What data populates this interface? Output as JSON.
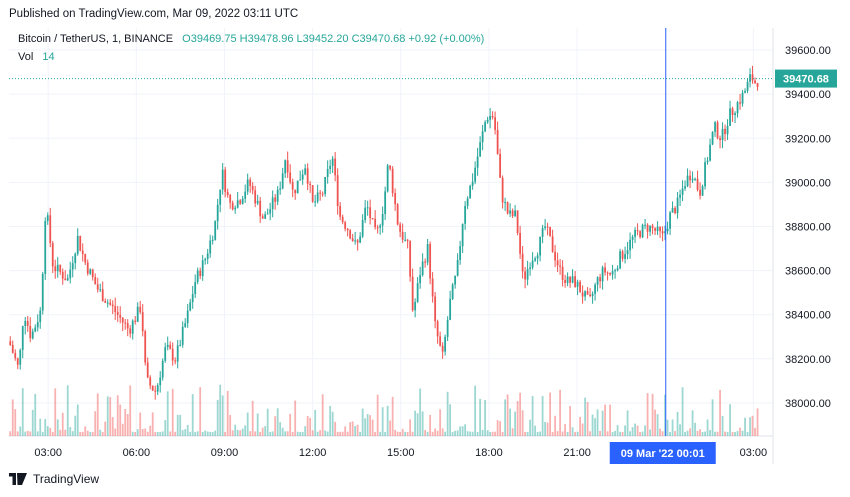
{
  "published": "Published on TradingView.com, Mar 09, 2022 03:11 UTC",
  "legend": {
    "symbol": "Bitcoin / TetherUS, 1, BINANCE",
    "ohlc_text": "O39469.75  H39478.96  L39452.20  C39470.68  +0.92 (+0.00%)"
  },
  "volume": {
    "label": "Vol",
    "value": "14"
  },
  "footer": {
    "brand": "TradingView"
  },
  "colors": {
    "up": "#26a69a",
    "down": "#ef5350",
    "crosshair": "#2962ff",
    "grid": "#f0f3fa"
  },
  "chart_data": {
    "type": "candlestick",
    "title": "Bitcoin / TetherUS, 1, BINANCE",
    "ylim": [
      37850,
      39700
    ],
    "y_ticks": [
      "38000.00",
      "38200.00",
      "38400.00",
      "38600.00",
      "38800.00",
      "39000.00",
      "39200.00",
      "39400.00",
      "39600.00"
    ],
    "x_ticks": [
      "03:00",
      "06:00",
      "09:00",
      "12:00",
      "15:00",
      "18:00",
      "21:00",
      "03:00"
    ],
    "last_price": "39470.68",
    "crosshair_label": "09 Mar '22   00:01",
    "close_series": [
      {
        "t": "01:40",
        "v": 38280
      },
      {
        "t": "02:00",
        "v": 38150
      },
      {
        "t": "02:10",
        "v": 38420
      },
      {
        "t": "02:25",
        "v": 38300
      },
      {
        "t": "02:45",
        "v": 38420
      },
      {
        "t": "02:55",
        "v": 38900
      },
      {
        "t": "03:10",
        "v": 38620
      },
      {
        "t": "03:40",
        "v": 38560
      },
      {
        "t": "04:00",
        "v": 38750
      },
      {
        "t": "04:15",
        "v": 38640
      },
      {
        "t": "04:40",
        "v": 38520
      },
      {
        "t": "05:15",
        "v": 38420
      },
      {
        "t": "05:45",
        "v": 38330
      },
      {
        "t": "06:10",
        "v": 38440
      },
      {
        "t": "06:20",
        "v": 38100
      },
      {
        "t": "06:40",
        "v": 38050
      },
      {
        "t": "07:00",
        "v": 38250
      },
      {
        "t": "07:20",
        "v": 38200
      },
      {
        "t": "07:45",
        "v": 38400
      },
      {
        "t": "08:00",
        "v": 38550
      },
      {
        "t": "08:20",
        "v": 38650
      },
      {
        "t": "08:40",
        "v": 38800
      },
      {
        "t": "08:55",
        "v": 39050
      },
      {
        "t": "09:10",
        "v": 38900
      },
      {
        "t": "09:30",
        "v": 38920
      },
      {
        "t": "09:50",
        "v": 39000
      },
      {
        "t": "10:20",
        "v": 38830
      },
      {
        "t": "10:50",
        "v": 38950
      },
      {
        "t": "11:05",
        "v": 39120
      },
      {
        "t": "11:20",
        "v": 38950
      },
      {
        "t": "11:45",
        "v": 39080
      },
      {
        "t": "12:00",
        "v": 38900
      },
      {
        "t": "12:20",
        "v": 38950
      },
      {
        "t": "12:40",
        "v": 39120
      },
      {
        "t": "12:55",
        "v": 38850
      },
      {
        "t": "13:15",
        "v": 38780
      },
      {
        "t": "13:30",
        "v": 38700
      },
      {
        "t": "13:50",
        "v": 38900
      },
      {
        "t": "14:10",
        "v": 38750
      },
      {
        "t": "14:25",
        "v": 38900
      },
      {
        "t": "14:35",
        "v": 39100
      },
      {
        "t": "14:55",
        "v": 38800
      },
      {
        "t": "15:15",
        "v": 38700
      },
      {
        "t": "15:25",
        "v": 38400
      },
      {
        "t": "15:40",
        "v": 38600
      },
      {
        "t": "15:55",
        "v": 38700
      },
      {
        "t": "16:10",
        "v": 38350
      },
      {
        "t": "16:25",
        "v": 38200
      },
      {
        "t": "16:40",
        "v": 38450
      },
      {
        "t": "16:55",
        "v": 38600
      },
      {
        "t": "17:10",
        "v": 38900
      },
      {
        "t": "17:25",
        "v": 39000
      },
      {
        "t": "17:40",
        "v": 39150
      },
      {
        "t": "17:55",
        "v": 39300
      },
      {
        "t": "18:10",
        "v": 39300
      },
      {
        "t": "18:25",
        "v": 38950
      },
      {
        "t": "18:40",
        "v": 38850
      },
      {
        "t": "18:55",
        "v": 38850
      },
      {
        "t": "19:10",
        "v": 38550
      },
      {
        "t": "19:25",
        "v": 38650
      },
      {
        "t": "19:40",
        "v": 38700
      },
      {
        "t": "19:55",
        "v": 38800
      },
      {
        "t": "20:10",
        "v": 38700
      },
      {
        "t": "20:25",
        "v": 38600
      },
      {
        "t": "20:40",
        "v": 38550
      },
      {
        "t": "20:55",
        "v": 38550
      },
      {
        "t": "21:10",
        "v": 38500
      },
      {
        "t": "21:25",
        "v": 38450
      },
      {
        "t": "21:40",
        "v": 38550
      },
      {
        "t": "21:55",
        "v": 38600
      },
      {
        "t": "22:10",
        "v": 38580
      },
      {
        "t": "22:25",
        "v": 38650
      },
      {
        "t": "22:40",
        "v": 38700
      },
      {
        "t": "22:55",
        "v": 38750
      },
      {
        "t": "23:10",
        "v": 38780
      },
      {
        "t": "23:25",
        "v": 38800
      },
      {
        "t": "23:40",
        "v": 38780
      },
      {
        "t": "23:55",
        "v": 38750
      },
      {
        "t": "00:10",
        "v": 38850
      },
      {
        "t": "00:25",
        "v": 38900
      },
      {
        "t": "00:40",
        "v": 39000
      },
      {
        "t": "00:55",
        "v": 39050
      },
      {
        "t": "01:10",
        "v": 38950
      },
      {
        "t": "01:25",
        "v": 39100
      },
      {
        "t": "01:40",
        "v": 39250
      },
      {
        "t": "01:55",
        "v": 39200
      },
      {
        "t": "02:10",
        "v": 39300
      },
      {
        "t": "02:25",
        "v": 39350
      },
      {
        "t": "02:40",
        "v": 39400
      },
      {
        "t": "02:55",
        "v": 39480
      },
      {
        "t": "03:05",
        "v": 39450
      },
      {
        "t": "03:11",
        "v": 39470.68
      }
    ]
  }
}
